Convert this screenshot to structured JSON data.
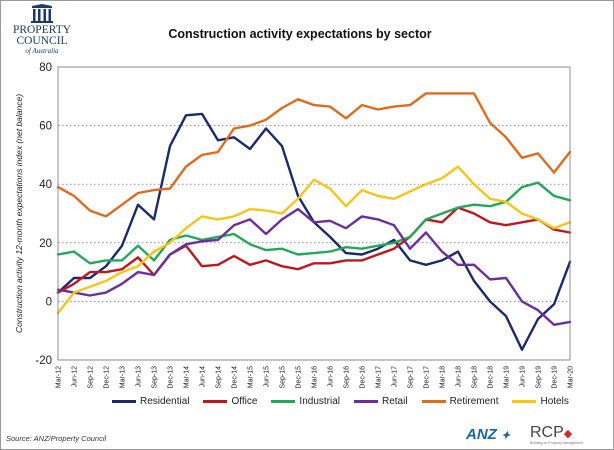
{
  "logo": {
    "line1": "PROPERTY",
    "line2": "COUNCIL",
    "line3": "of Australia"
  },
  "source": "Source: ANZ/Property Council",
  "brand": {
    "anz": "ANZ",
    "rcp": "RCP",
    "rcp_sub": "Building on Property Management"
  },
  "chart_data": {
    "type": "line",
    "title": "Construction activity expectations by sector",
    "ylabel": "Construction activity 12-month expectations index (net balance)",
    "xlabel": "",
    "ylim": [
      -20,
      80
    ],
    "yticks": [
      -20,
      0,
      20,
      40,
      60,
      80
    ],
    "grid": true,
    "legend_position": "bottom",
    "x": [
      "Mar-12",
      "Jun-12",
      "Sep-12",
      "Dec-12",
      "Mar-13",
      "Jun-13",
      "Sep-13",
      "Dec-13",
      "Mar-14",
      "Jun-14",
      "Sep-14",
      "Dec-14",
      "Mar-15",
      "Jun-15",
      "Sep-15",
      "Dec-15",
      "Mar-16",
      "Jun-16",
      "Sep-16",
      "Dec-16",
      "Mar-17",
      "Jun-17",
      "Sep-17",
      "Dec-17",
      "Mar-18",
      "Jun-18",
      "Sep-18",
      "Dec-18",
      "Mar-19",
      "Jun-19",
      "Sep-19",
      "Dec-19",
      "Mar-20"
    ],
    "xtick_labels": [
      "Mar-12",
      "Jun-12",
      "Sep-12",
      "Dec-12",
      "Mar-13",
      "Jun-13",
      "Sep-13",
      "Dec-13",
      "Mar-14",
      "Jun-14",
      "Sep-14",
      "Dec-14",
      "Mar-15",
      "Jun-15",
      "Sep-15",
      "Dec-15",
      "Mar-16",
      "Jun-16",
      "Sep-16",
      "Dec-16",
      "Mar-17",
      "Jun-17",
      "Sep-17",
      "Dec-17",
      "Mar-18",
      "Jun-18",
      "Sep-18",
      "Dec-18",
      "Mar-19",
      "Jun-19",
      "Sep-19",
      "Dec-19",
      "Mar-20"
    ],
    "series": [
      {
        "name": "Residential",
        "color": "#1a2a6c",
        "values": [
          3,
          8,
          8,
          12,
          19,
          33,
          28,
          53,
          63.5,
          64,
          55,
          56,
          52,
          59,
          53,
          36,
          27,
          22,
          16.5,
          16,
          18,
          21,
          14,
          12.5,
          14,
          17,
          7,
          0,
          -5,
          -16.5,
          -6,
          -1,
          13.5
        ]
      },
      {
        "name": "Office",
        "color": "#c0161d",
        "values": [
          3,
          6,
          10,
          10,
          11,
          15,
          9,
          16,
          19,
          12,
          12.5,
          15.5,
          12.5,
          14,
          12,
          11,
          13,
          13,
          14,
          14,
          16,
          18,
          22,
          28,
          27,
          32,
          30,
          27,
          26,
          27,
          28,
          24.5,
          23.5
        ]
      },
      {
        "name": "Industrial",
        "color": "#23a85a",
        "values": [
          16,
          17,
          13,
          14,
          14,
          19,
          14,
          21,
          22.5,
          21,
          22,
          23,
          19.5,
          17.5,
          18,
          16,
          16.5,
          17,
          18.5,
          18,
          19,
          20,
          22,
          28,
          30,
          32,
          33,
          32.5,
          34,
          39,
          40.5,
          36,
          34.5
        ]
      },
      {
        "name": "Retail",
        "color": "#6a2f9c",
        "values": [
          4,
          3,
          2,
          3,
          6,
          10,
          9,
          16,
          19.5,
          20.5,
          21,
          26,
          28,
          23,
          28,
          31.5,
          27,
          27.5,
          25,
          29,
          28,
          26,
          18,
          23.5,
          17,
          12.5,
          12.5,
          7.5,
          8,
          0,
          -3,
          -8,
          -7
        ]
      },
      {
        "name": "Retirement",
        "color": "#e06b1c",
        "values": [
          39,
          36,
          31,
          29,
          33,
          37,
          38,
          38.5,
          46,
          50,
          51,
          59,
          60,
          62,
          66,
          69,
          67,
          66.5,
          62.5,
          67,
          65.5,
          66.5,
          67,
          71,
          71,
          71,
          71,
          61,
          56,
          49,
          50.5,
          44,
          51
        ]
      },
      {
        "name": "Hotels",
        "color": "#f5c518",
        "values": [
          -4,
          3,
          5,
          7,
          10,
          12,
          17,
          20,
          25,
          29,
          28,
          29,
          31.5,
          31,
          30,
          35,
          41.5,
          38.5,
          32.5,
          38,
          36,
          35,
          37.5,
          40,
          42,
          46,
          40,
          35,
          34,
          30,
          28,
          25,
          27
        ]
      }
    ]
  }
}
